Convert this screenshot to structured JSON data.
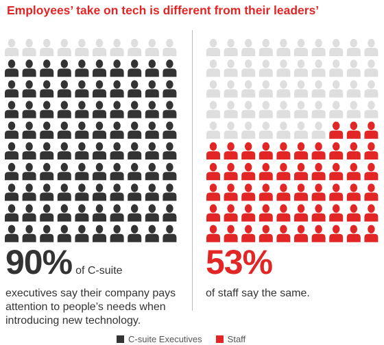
{
  "title": "Employees’ take on tech is different from their leaders’",
  "colors": {
    "accent": "#e22626",
    "executives": "#333333",
    "inactive": "#dedede"
  },
  "left": {
    "percent": "90%",
    "text_inline": "of C-suite",
    "text_lines": [
      "executives say their company pays",
      "attention to people’s needs when",
      "introducing new technology."
    ]
  },
  "right": {
    "percent": "53%",
    "text_lines": [
      "of staff say the same."
    ]
  },
  "legend": [
    {
      "label": "C-suite Executives",
      "color": "#333333"
    },
    {
      "label": "Staff",
      "color": "#e22626"
    }
  ],
  "chart_data": {
    "type": "pictograph",
    "icons_per_panel": 100,
    "grid": [
      10,
      10
    ],
    "series": [
      {
        "name": "C-suite Executives",
        "value": 90,
        "unit": "%"
      },
      {
        "name": "Staff",
        "value": 53,
        "unit": "%"
      }
    ]
  }
}
